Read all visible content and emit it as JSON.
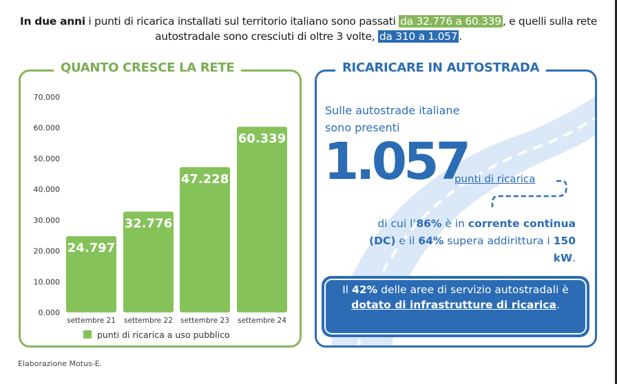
{
  "headline": {
    "bold_start": "In due anni",
    "text1": " i punti di ricarica installati sul territorio italiano sono passati ",
    "highlight_green": "da 32.776 a 60.339",
    "text2": ", e quelli sulla rete autostradale sono cresciuti di oltre 3 volte, ",
    "highlight_blue": "da 310 a 1.057",
    "end": "."
  },
  "left_panel": {
    "title": "QUANTO CRESCE LA RETE"
  },
  "right_panel": {
    "title": "RICARICARE IN AUTOSTRADA",
    "intro_line1": "Sulle autostrade italiane",
    "intro_line2": "sono presenti",
    "big_number": "1.057",
    "big_label": "punti di ricarica",
    "detail": {
      "a": "di cui l’",
      "b": "86%",
      "c": " è in ",
      "d": "corrente continua (DC)",
      "e": " e il ",
      "f": "64%",
      "g": " supera addirittura i ",
      "h": "150 kW",
      "i": "."
    },
    "box": {
      "a": "Il ",
      "b": "42%",
      "c": " delle aree di servizio autostradali è ",
      "d": "dotato di infrastrutture di ricarica",
      "e": "."
    }
  },
  "source_note": "Elaborazione Motus-E.",
  "colors": {
    "green": "#86c25a",
    "blue": "#2b6cb4"
  },
  "chart_data": {
    "type": "bar",
    "categories": [
      "settembre 21",
      "settembre 22",
      "settembre 23",
      "settembre 24"
    ],
    "values": [
      24797,
      32776,
      47228,
      60339
    ],
    "value_labels": [
      "24.797",
      "32.776",
      "47.228",
      "60.339"
    ],
    "yticks": [
      "0.000",
      "10.000",
      "20.000",
      "30.000",
      "40.000",
      "50.000",
      "60.000",
      "70.000"
    ],
    "ylim": [
      0,
      70000
    ],
    "legend": "punti di ricarica a uso pubblico",
    "legend_position": "bottom"
  }
}
